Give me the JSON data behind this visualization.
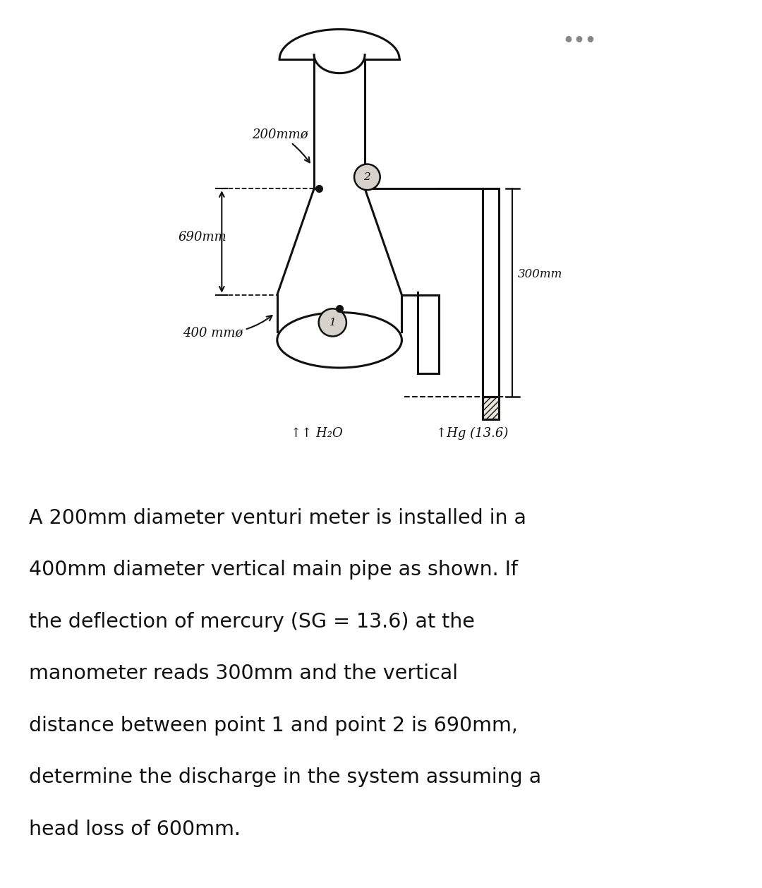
{
  "diagram_bg": "#d6d2cb",
  "text_bg": "#ffffff",
  "lc": "#111111",
  "dots_color": "#888888",
  "title_dots": "•••",
  "label_200mm": "200mmø",
  "label_690mm": "690mm",
  "label_400mm": "400 mmø",
  "label_300mm": "300mm",
  "label_h2o": "↑↑ H₂O",
  "label_hg": "↑Hg (13.6)",
  "description_lines": [
    "A 200mm diameter venturi meter is installed in a",
    "400mm diameter vertical main pipe as shown. If",
    "the deflection of mercury (SG = 13.6) at the",
    "manometer reads 300mm and the vertical",
    "distance between point 1 and point 2 is 690mm,",
    "determine the discharge in the system assuming a",
    "head loss of 600mm."
  ]
}
